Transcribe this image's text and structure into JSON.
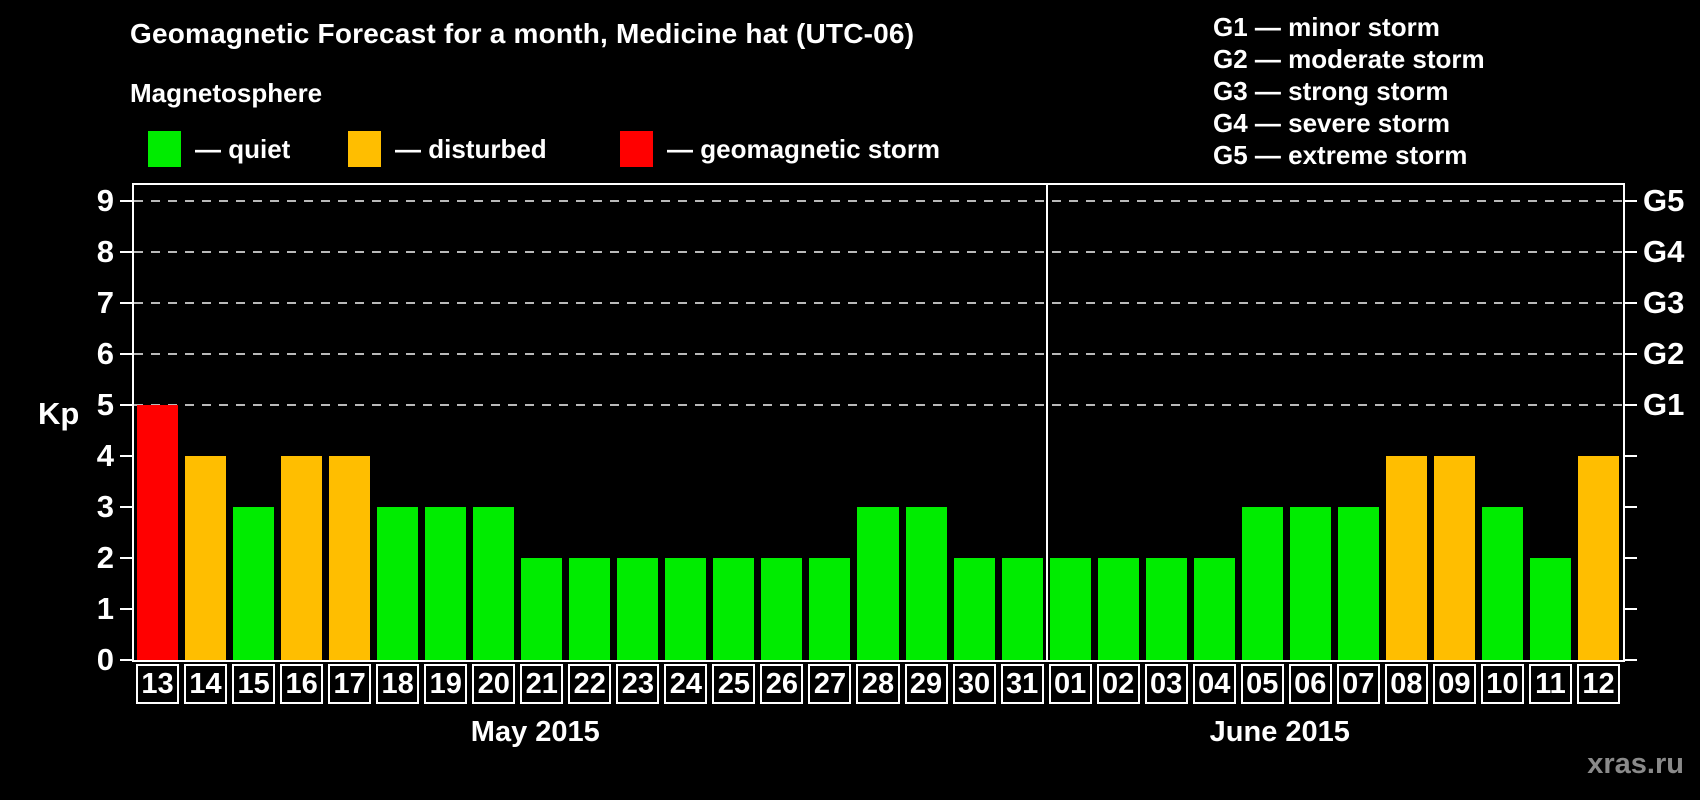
{
  "title": "Geomagnetic Forecast for a month, Medicine hat (UTC-06)",
  "subtitle": "Magnetosphere",
  "status_legend": [
    {
      "key": "quiet",
      "label": "— quiet",
      "color": "#00ec00"
    },
    {
      "key": "disturbed",
      "label": "— disturbed",
      "color": "#ffbe00"
    },
    {
      "key": "storm",
      "label": "— geomagnetic storm",
      "color": "#ff0000"
    }
  ],
  "g_scale_legend": [
    "G1 — minor storm",
    "G2 — moderate storm",
    "G3 — strong storm",
    "G4 — severe storm",
    "G5 — extreme storm"
  ],
  "watermark": "xras.ru",
  "chart_data": {
    "type": "bar",
    "title": "Geomagnetic Forecast for a month, Medicine hat (UTC-06)",
    "ylabel": "Kp",
    "ylim": [
      0,
      9.4
    ],
    "yticks": [
      0,
      1,
      2,
      3,
      4,
      5,
      6,
      7,
      8,
      9
    ],
    "gridlines_at": [
      5,
      6,
      7,
      8,
      9
    ],
    "grid": "dashed horizontal lines at Kp 5–9 only",
    "legend_position": "top-left and top-right",
    "right_axis": [
      {
        "value": 5,
        "label": "G1"
      },
      {
        "value": 6,
        "label": "G2"
      },
      {
        "value": 7,
        "label": "G3"
      },
      {
        "value": 8,
        "label": "G4"
      },
      {
        "value": 9,
        "label": "G5"
      }
    ],
    "months": [
      {
        "label": "May 2015",
        "bars": [
          {
            "day": "13",
            "kp": 5,
            "status": "storm"
          },
          {
            "day": "14",
            "kp": 4,
            "status": "disturbed"
          },
          {
            "day": "15",
            "kp": 3,
            "status": "quiet"
          },
          {
            "day": "16",
            "kp": 4,
            "status": "disturbed"
          },
          {
            "day": "17",
            "kp": 4,
            "status": "disturbed"
          },
          {
            "day": "18",
            "kp": 3,
            "status": "quiet"
          },
          {
            "day": "19",
            "kp": 3,
            "status": "quiet"
          },
          {
            "day": "20",
            "kp": 3,
            "status": "quiet"
          },
          {
            "day": "21",
            "kp": 2,
            "status": "quiet"
          },
          {
            "day": "22",
            "kp": 2,
            "status": "quiet"
          },
          {
            "day": "23",
            "kp": 2,
            "status": "quiet"
          },
          {
            "day": "24",
            "kp": 2,
            "status": "quiet"
          },
          {
            "day": "25",
            "kp": 2,
            "status": "quiet"
          },
          {
            "day": "26",
            "kp": 2,
            "status": "quiet"
          },
          {
            "day": "27",
            "kp": 2,
            "status": "quiet"
          },
          {
            "day": "28",
            "kp": 3,
            "status": "quiet"
          },
          {
            "day": "29",
            "kp": 3,
            "status": "quiet"
          },
          {
            "day": "30",
            "kp": 2,
            "status": "quiet"
          },
          {
            "day": "31",
            "kp": 2,
            "status": "quiet"
          }
        ]
      },
      {
        "label": "June 2015",
        "bars": [
          {
            "day": "01",
            "kp": 2,
            "status": "quiet"
          },
          {
            "day": "02",
            "kp": 2,
            "status": "quiet"
          },
          {
            "day": "03",
            "kp": 2,
            "status": "quiet"
          },
          {
            "day": "04",
            "kp": 2,
            "status": "quiet"
          },
          {
            "day": "05",
            "kp": 3,
            "status": "quiet"
          },
          {
            "day": "06",
            "kp": 3,
            "status": "quiet"
          },
          {
            "day": "07",
            "kp": 3,
            "status": "quiet"
          },
          {
            "day": "08",
            "kp": 4,
            "status": "disturbed"
          },
          {
            "day": "09",
            "kp": 4,
            "status": "disturbed"
          },
          {
            "day": "10",
            "kp": 3,
            "status": "quiet"
          },
          {
            "day": "11",
            "kp": 2,
            "status": "quiet"
          },
          {
            "day": "12",
            "kp": 4,
            "status": "disturbed"
          }
        ]
      }
    ]
  }
}
